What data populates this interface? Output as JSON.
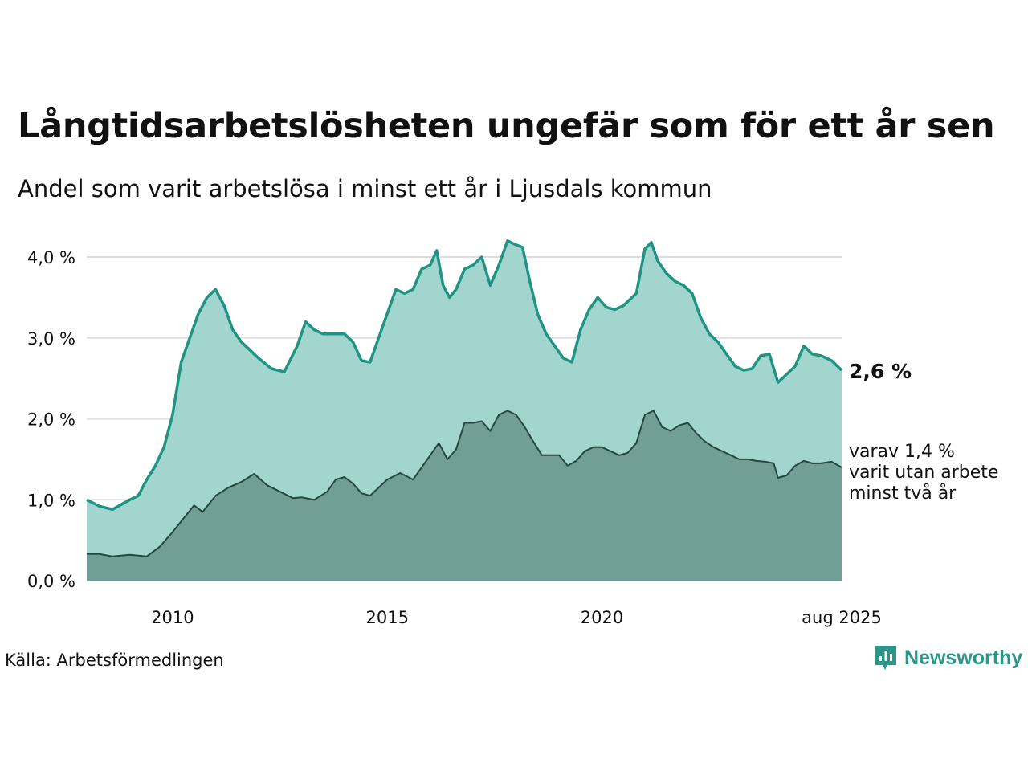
{
  "title": "Långtidsarbetslösheten ungefär som för ett år sen",
  "subtitle": "Andel som varit arbetslösa i minst ett år i Ljusdals kommun",
  "source": "Källa: Arbetsförmedlingen",
  "brand": "Newsworthy",
  "colors": {
    "upper_line": "#1f9483",
    "upper_fill": "#a3d5cf",
    "lower_line": "#24483f",
    "lower_fill": "#719e96",
    "grid": "#dddddd"
  },
  "chart_data": {
    "type": "area",
    "x_range": [
      2008.0,
      2025.583
    ],
    "y_range": [
      0,
      4.2
    ],
    "y_ticks": [
      {
        "value": 0,
        "label": "0,0 %"
      },
      {
        "value": 1,
        "label": "1,0 %"
      },
      {
        "value": 2,
        "label": "2,0 %"
      },
      {
        "value": 3,
        "label": "3,0 %"
      },
      {
        "value": 4,
        "label": "4,0 %"
      }
    ],
    "x_ticks": [
      {
        "value": 2010,
        "label": "2010"
      },
      {
        "value": 2015,
        "label": "2015"
      },
      {
        "value": 2020,
        "label": "2020"
      },
      {
        "value": 2025.583,
        "label": "aug 2025"
      }
    ],
    "grid": true,
    "series": [
      {
        "key": "upper",
        "points": [
          [
            2008.0,
            1.0
          ],
          [
            2008.3,
            0.92
          ],
          [
            2008.6,
            0.88
          ],
          [
            2009.0,
            1.0
          ],
          [
            2009.2,
            1.05
          ],
          [
            2009.4,
            1.25
          ],
          [
            2009.6,
            1.42
          ],
          [
            2009.8,
            1.65
          ],
          [
            2010.0,
            2.05
          ],
          [
            2010.2,
            2.7
          ],
          [
            2010.4,
            3.0
          ],
          [
            2010.6,
            3.3
          ],
          [
            2010.8,
            3.5
          ],
          [
            2011.0,
            3.6
          ],
          [
            2011.2,
            3.4
          ],
          [
            2011.4,
            3.1
          ],
          [
            2011.6,
            2.95
          ],
          [
            2011.8,
            2.85
          ],
          [
            2012.0,
            2.75
          ],
          [
            2012.3,
            2.62
          ],
          [
            2012.6,
            2.58
          ],
          [
            2012.9,
            2.9
          ],
          [
            2013.1,
            3.2
          ],
          [
            2013.3,
            3.1
          ],
          [
            2013.5,
            3.05
          ],
          [
            2013.7,
            3.05
          ],
          [
            2014.0,
            3.05
          ],
          [
            2014.2,
            2.95
          ],
          [
            2014.4,
            2.72
          ],
          [
            2014.6,
            2.7
          ],
          [
            2014.8,
            3.0
          ],
          [
            2015.0,
            3.3
          ],
          [
            2015.2,
            3.6
          ],
          [
            2015.4,
            3.55
          ],
          [
            2015.6,
            3.6
          ],
          [
            2015.8,
            3.85
          ],
          [
            2016.0,
            3.9
          ],
          [
            2016.15,
            4.08
          ],
          [
            2016.3,
            3.65
          ],
          [
            2016.45,
            3.5
          ],
          [
            2016.6,
            3.6
          ],
          [
            2016.8,
            3.85
          ],
          [
            2017.0,
            3.9
          ],
          [
            2017.2,
            4.0
          ],
          [
            2017.4,
            3.65
          ],
          [
            2017.6,
            3.9
          ],
          [
            2017.8,
            4.2
          ],
          [
            2018.0,
            4.15
          ],
          [
            2018.15,
            4.12
          ],
          [
            2018.3,
            3.75
          ],
          [
            2018.5,
            3.3
          ],
          [
            2018.7,
            3.05
          ],
          [
            2018.9,
            2.9
          ],
          [
            2019.1,
            2.75
          ],
          [
            2019.3,
            2.7
          ],
          [
            2019.5,
            3.1
          ],
          [
            2019.7,
            3.35
          ],
          [
            2019.9,
            3.5
          ],
          [
            2020.1,
            3.38
          ],
          [
            2020.3,
            3.35
          ],
          [
            2020.5,
            3.4
          ],
          [
            2020.8,
            3.55
          ],
          [
            2021.0,
            4.1
          ],
          [
            2021.15,
            4.18
          ],
          [
            2021.3,
            3.95
          ],
          [
            2021.5,
            3.8
          ],
          [
            2021.7,
            3.7
          ],
          [
            2021.9,
            3.65
          ],
          [
            2022.1,
            3.55
          ],
          [
            2022.3,
            3.25
          ],
          [
            2022.5,
            3.05
          ],
          [
            2022.7,
            2.95
          ],
          [
            2022.9,
            2.8
          ],
          [
            2023.1,
            2.65
          ],
          [
            2023.3,
            2.6
          ],
          [
            2023.5,
            2.62
          ],
          [
            2023.7,
            2.78
          ],
          [
            2023.9,
            2.8
          ],
          [
            2024.1,
            2.45
          ],
          [
            2024.3,
            2.55
          ],
          [
            2024.5,
            2.65
          ],
          [
            2024.7,
            2.9
          ],
          [
            2024.9,
            2.8
          ],
          [
            2025.1,
            2.78
          ],
          [
            2025.35,
            2.72
          ],
          [
            2025.583,
            2.6
          ]
        ]
      },
      {
        "key": "lower",
        "points": [
          [
            2008.0,
            0.33
          ],
          [
            2008.3,
            0.33
          ],
          [
            2008.6,
            0.3
          ],
          [
            2009.0,
            0.32
          ],
          [
            2009.4,
            0.3
          ],
          [
            2009.7,
            0.42
          ],
          [
            2010.0,
            0.6
          ],
          [
            2010.3,
            0.8
          ],
          [
            2010.5,
            0.93
          ],
          [
            2010.7,
            0.85
          ],
          [
            2011.0,
            1.05
          ],
          [
            2011.3,
            1.15
          ],
          [
            2011.6,
            1.22
          ],
          [
            2011.9,
            1.32
          ],
          [
            2012.2,
            1.18
          ],
          [
            2012.5,
            1.1
          ],
          [
            2012.8,
            1.02
          ],
          [
            2013.0,
            1.03
          ],
          [
            2013.3,
            1.0
          ],
          [
            2013.6,
            1.1
          ],
          [
            2013.8,
            1.25
          ],
          [
            2014.0,
            1.28
          ],
          [
            2014.2,
            1.2
          ],
          [
            2014.4,
            1.08
          ],
          [
            2014.6,
            1.05
          ],
          [
            2014.8,
            1.15
          ],
          [
            2015.0,
            1.25
          ],
          [
            2015.3,
            1.33
          ],
          [
            2015.6,
            1.25
          ],
          [
            2015.8,
            1.4
          ],
          [
            2016.0,
            1.55
          ],
          [
            2016.2,
            1.7
          ],
          [
            2016.4,
            1.5
          ],
          [
            2016.6,
            1.62
          ],
          [
            2016.8,
            1.95
          ],
          [
            2017.0,
            1.95
          ],
          [
            2017.2,
            1.97
          ],
          [
            2017.4,
            1.85
          ],
          [
            2017.6,
            2.05
          ],
          [
            2017.8,
            2.1
          ],
          [
            2018.0,
            2.05
          ],
          [
            2018.2,
            1.9
          ],
          [
            2018.4,
            1.72
          ],
          [
            2018.6,
            1.55
          ],
          [
            2018.8,
            1.55
          ],
          [
            2019.0,
            1.55
          ],
          [
            2019.2,
            1.42
          ],
          [
            2019.4,
            1.48
          ],
          [
            2019.6,
            1.6
          ],
          [
            2019.8,
            1.65
          ],
          [
            2020.0,
            1.65
          ],
          [
            2020.2,
            1.6
          ],
          [
            2020.4,
            1.55
          ],
          [
            2020.6,
            1.58
          ],
          [
            2020.8,
            1.7
          ],
          [
            2021.0,
            2.05
          ],
          [
            2021.2,
            2.1
          ],
          [
            2021.4,
            1.9
          ],
          [
            2021.6,
            1.85
          ],
          [
            2021.8,
            1.92
          ],
          [
            2022.0,
            1.95
          ],
          [
            2022.2,
            1.82
          ],
          [
            2022.4,
            1.72
          ],
          [
            2022.6,
            1.65
          ],
          [
            2022.8,
            1.6
          ],
          [
            2023.0,
            1.55
          ],
          [
            2023.2,
            1.5
          ],
          [
            2023.4,
            1.5
          ],
          [
            2023.6,
            1.48
          ],
          [
            2023.8,
            1.47
          ],
          [
            2024.0,
            1.45
          ],
          [
            2024.1,
            1.27
          ],
          [
            2024.3,
            1.3
          ],
          [
            2024.5,
            1.42
          ],
          [
            2024.7,
            1.48
          ],
          [
            2024.9,
            1.45
          ],
          [
            2025.1,
            1.45
          ],
          [
            2025.35,
            1.47
          ],
          [
            2025.583,
            1.4
          ]
        ]
      }
    ],
    "annotations": [
      {
        "key": "upper",
        "text": "2,6 %"
      },
      {
        "key": "lower",
        "lines": [
          "varav 1,4 %",
          "varit utan arbete",
          "minst två år"
        ]
      }
    ]
  }
}
